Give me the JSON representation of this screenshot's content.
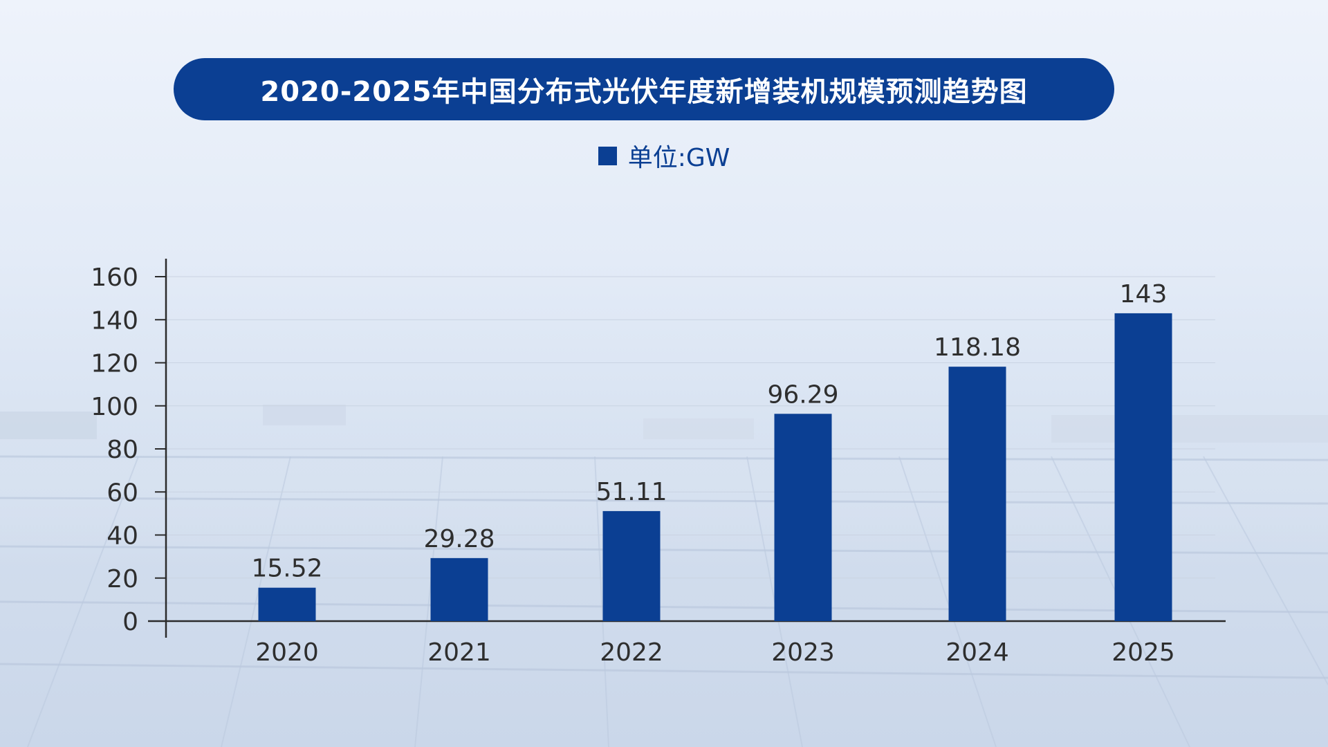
{
  "title": "2020-2025年中国分布式光伏年度新增装机规模预测趋势图",
  "legend": {
    "label": "单位:GW",
    "color": "#0b3f93"
  },
  "colors": {
    "bar": "#0b3f93",
    "axis": "#2b2b2b",
    "grid": "#c9d3e2",
    "text": "#2e2e2e"
  },
  "chart_data": {
    "type": "bar",
    "title": "2020-2025年中国分布式光伏年度新增装机规模预测趋势图",
    "xlabel": "",
    "ylabel": "",
    "unit": "GW",
    "categories": [
      "2020",
      "2021",
      "2022",
      "2023",
      "2024",
      "2025"
    ],
    "values": [
      15.52,
      29.28,
      51.11,
      96.29,
      118.18,
      143
    ],
    "labels": [
      "15.52",
      "29.28",
      "51.11",
      "96.29",
      "118.18",
      "143"
    ],
    "ylim": [
      0,
      160
    ],
    "yticks": [
      0,
      20,
      40,
      60,
      80,
      100,
      120,
      140,
      160
    ],
    "grid": true,
    "legend_position": "top-center"
  }
}
